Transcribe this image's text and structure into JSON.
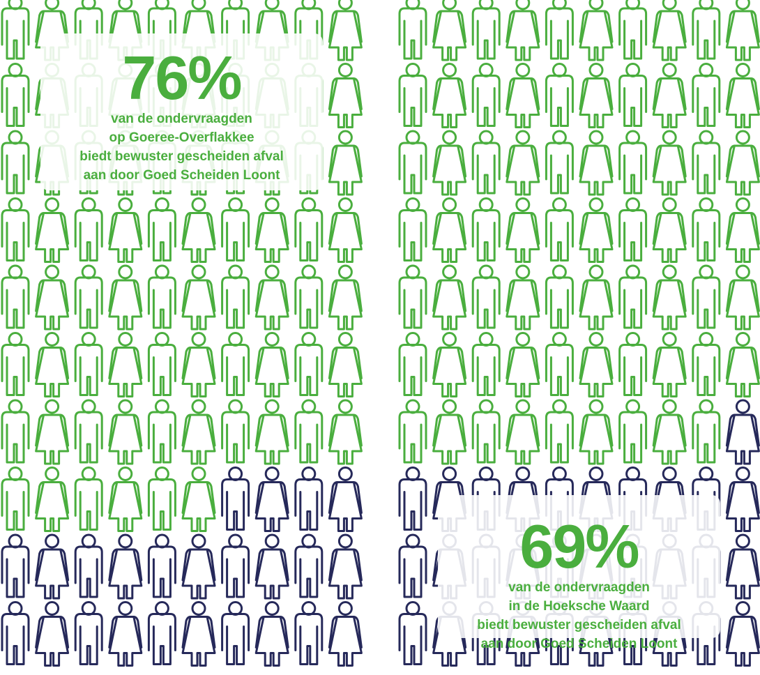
{
  "colors": {
    "green": "#4aae3e",
    "navy": "#26295a",
    "background": "#ffffff"
  },
  "chart_data": [
    {
      "type": "pictogram",
      "total_icons": 100,
      "percent": 76,
      "highlighted": 76,
      "fill_order": "row-major from top-left",
      "highlight_color": "#4aae3e",
      "rest_color": "#26295a",
      "icon_alternation": [
        "man",
        "woman"
      ],
      "label": "76%",
      "caption_lines": [
        "van de ondervraagden",
        "op Goeree-Overflakkee",
        "biedt bewuster gescheiden afval",
        "aan door Goed Scheiden Loont"
      ]
    },
    {
      "type": "pictogram",
      "total_icons": 100,
      "percent": 69,
      "highlighted": 69,
      "fill_order": "row-major from top-left",
      "highlight_color": "#4aae3e",
      "rest_color": "#26295a",
      "icon_alternation": [
        "man",
        "woman"
      ],
      "label": "69%",
      "caption_lines": [
        "van de ondervraagden",
        "in de Hoeksche Waard",
        "biedt bewuster gescheiden afval",
        "aan door Goed Scheiden Loont"
      ]
    }
  ]
}
